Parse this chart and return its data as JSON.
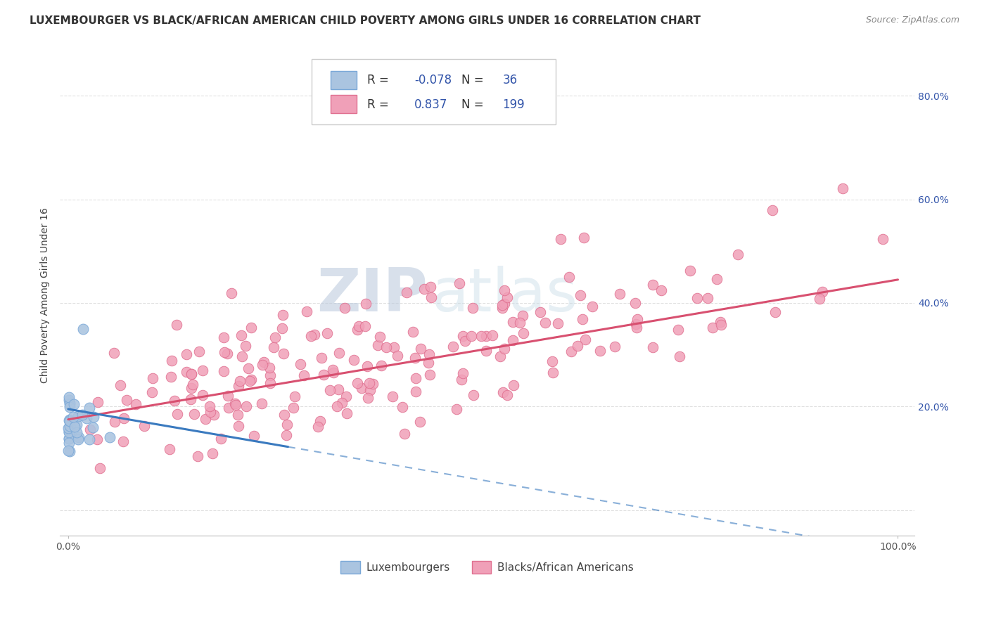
{
  "title": "LUXEMBOURGER VS BLACK/AFRICAN AMERICAN CHILD POVERTY AMONG GIRLS UNDER 16 CORRELATION CHART",
  "source": "Source: ZipAtlas.com",
  "ylabel": "Child Poverty Among Girls Under 16",
  "xlim": [
    -0.01,
    1.02
  ],
  "ylim": [
    -0.05,
    0.88
  ],
  "grid_color": "#cccccc",
  "watermark_zip": "ZIP",
  "watermark_atlas": "atlas",
  "lux_color": "#aac4e0",
  "lux_edge_color": "#7aa8d8",
  "black_color": "#f0a0b8",
  "black_edge_color": "#e07090",
  "lux_line_color": "#3a7abf",
  "black_line_color": "#d85070",
  "lux_R": -0.078,
  "lux_N": 36,
  "black_R": 0.837,
  "black_N": 199,
  "background_color": "#ffffff",
  "title_fontsize": 11,
  "axis_fontsize": 10,
  "tick_fontsize": 10,
  "legend_text_color": "#3355aa",
  "right_tick_color": "#3355aa"
}
